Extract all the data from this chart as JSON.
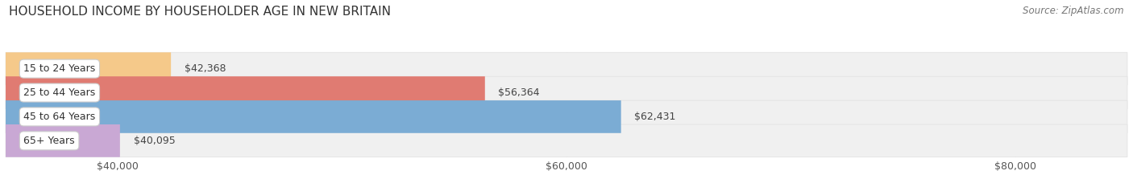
{
  "title": "HOUSEHOLD INCOME BY HOUSEHOLDER AGE IN NEW BRITAIN",
  "source": "Source: ZipAtlas.com",
  "categories": [
    "15 to 24 Years",
    "25 to 44 Years",
    "45 to 64 Years",
    "65+ Years"
  ],
  "values": [
    42368,
    56364,
    62431,
    40095
  ],
  "bar_colors": [
    "#f5c98a",
    "#e07b72",
    "#7bacd4",
    "#c9a8d4"
  ],
  "value_labels": [
    "$42,368",
    "$56,364",
    "$62,431",
    "$40,095"
  ],
  "xlim": [
    35000,
    85000
  ],
  "xticks": [
    40000,
    60000,
    80000
  ],
  "xtick_labels": [
    "$40,000",
    "$60,000",
    "$80,000"
  ],
  "background_color": "#ffffff",
  "bar_background_color": "#f0f0f0",
  "bar_background_edge": "#e0e0e0",
  "title_fontsize": 11,
  "label_fontsize": 9,
  "tick_fontsize": 9,
  "source_fontsize": 8.5
}
